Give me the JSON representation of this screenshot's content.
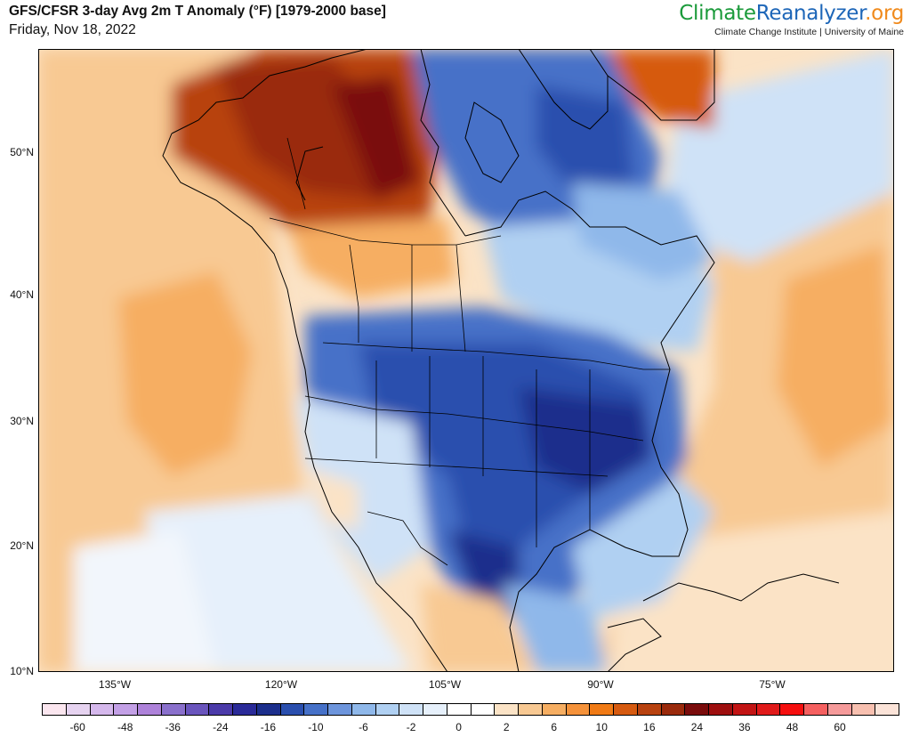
{
  "header": {
    "title": "GFS/CFSR 3-day Avg 2m T Anomaly (°F) [1979-2000 base]",
    "date": "Friday, Nov 18, 2022"
  },
  "brand": {
    "name_part1": "Climate",
    "name_part2": "Reanalyzer",
    "name_part3": ".org",
    "subtitle": "Climate Change Institute | University of Maine"
  },
  "map": {
    "lat_labels": [
      "50°N",
      "40°N",
      "30°N",
      "20°N",
      "10°N"
    ],
    "lon_labels": [
      "135°W",
      "120°W",
      "105°W",
      "90°W",
      "75°W"
    ]
  },
  "colorbar": {
    "colors": [
      "#fbe6ef",
      "#e6d3f0",
      "#d5b8ec",
      "#c3a0e6",
      "#ae82da",
      "#8a70cc",
      "#6a55bd",
      "#4b3aa9",
      "#2a2a98",
      "#1c2f8c",
      "#2a4fae",
      "#4671c8",
      "#6d95dc",
      "#8fb8ea",
      "#b0d0f2",
      "#cfe2f7",
      "#e6f0fb",
      "#ffffff",
      "#ffffff",
      "#fbe3c6",
      "#f8c993",
      "#f6ae62",
      "#f5923a",
      "#f07a15",
      "#d65a10",
      "#b84210",
      "#9a2a0c",
      "#7a0c0c",
      "#9e0f0f",
      "#c21414",
      "#e01a1a",
      "#f50f0f",
      "#f56060",
      "#f59a9a",
      "#f8c0b0",
      "#fbe3d8"
    ],
    "labels": [
      "-60",
      "-48",
      "-36",
      "-24",
      "-16",
      "-10",
      "-6",
      "-2",
      "0",
      "2",
      "6",
      "10",
      "16",
      "24",
      "36",
      "48",
      "60"
    ]
  }
}
